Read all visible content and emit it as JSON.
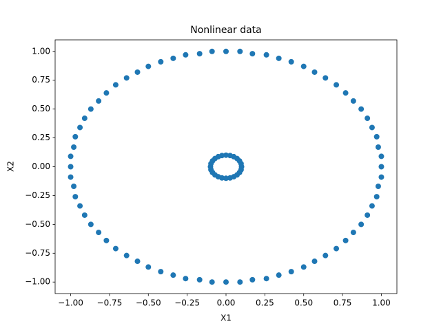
{
  "chart_data": {
    "type": "scatter",
    "title": "Nonlinear data",
    "x_label": "X1",
    "y_label": "X2",
    "color": "#1f77b4",
    "grid": false,
    "xlim": [
      -1.1,
      1.1
    ],
    "ylim": [
      -1.1,
      1.1
    ],
    "xticks": [
      {
        "value": -1,
        "label": "−1.00"
      },
      {
        "value": -0.75,
        "label": "−0.75"
      },
      {
        "value": -0.5,
        "label": "−0.50"
      },
      {
        "value": -0.25,
        "label": "−0.25"
      },
      {
        "value": 0,
        "label": "0.00"
      },
      {
        "value": 0.25,
        "label": "0.25"
      },
      {
        "value": 0.5,
        "label": "0.50"
      },
      {
        "value": 0.75,
        "label": "0.75"
      },
      {
        "value": 1,
        "label": "1.00"
      }
    ],
    "yticks": [
      {
        "value": -1,
        "label": "−1.00"
      },
      {
        "value": -0.75,
        "label": "−0.75"
      },
      {
        "value": -0.5,
        "label": "−0.50"
      },
      {
        "value": -0.25,
        "label": "−0.25"
      },
      {
        "value": 0,
        "label": "0.00"
      },
      {
        "value": 0.25,
        "label": "0.25"
      },
      {
        "value": 0.5,
        "label": "0.50"
      },
      {
        "value": 0.75,
        "label": "0.75"
      },
      {
        "value": 1,
        "label": "1.00"
      }
    ],
    "x": [
      1,
      1,
      0.98,
      0.97,
      0.94,
      0.91,
      0.87,
      0.82,
      0.77,
      0.71,
      0.64,
      0.57,
      0.5,
      0.42,
      0.34,
      0.26,
      0.17,
      0.09,
      0,
      -0.09,
      -0.17,
      -0.26,
      -0.34,
      -0.42,
      -0.5,
      -0.57,
      -0.64,
      -0.71,
      -0.77,
      -0.82,
      -0.87,
      -0.91,
      -0.94,
      -0.97,
      -0.98,
      -1,
      -1,
      -1,
      -0.98,
      -0.97,
      -0.94,
      -0.91,
      -0.87,
      -0.82,
      -0.77,
      -0.71,
      -0.64,
      -0.57,
      -0.5,
      -0.42,
      -0.34,
      -0.26,
      -0.17,
      -0.09,
      0,
      0.09,
      0.17,
      0.26,
      0.34,
      0.42,
      0.5,
      0.57,
      0.64,
      0.71,
      0.77,
      0.82,
      0.87,
      0.91,
      0.94,
      0.97,
      0.98,
      1,
      0.1,
      0.097,
      0.087,
      0.071,
      0.05,
      0.026,
      0,
      -0.026,
      -0.05,
      -0.071,
      -0.087,
      -0.097,
      -0.1,
      -0.097,
      -0.087,
      -0.071,
      -0.05,
      -0.026,
      0,
      0.026,
      0.05,
      0.071,
      0.087,
      0.097
    ],
    "y": [
      0,
      0.09,
      0.17,
      0.26,
      0.34,
      0.42,
      0.5,
      0.57,
      0.64,
      0.71,
      0.77,
      0.82,
      0.87,
      0.91,
      0.94,
      0.97,
      0.98,
      1,
      1,
      1,
      0.98,
      0.97,
      0.94,
      0.91,
      0.87,
      0.82,
      0.77,
      0.71,
      0.64,
      0.57,
      0.5,
      0.42,
      0.34,
      0.26,
      0.17,
      0.09,
      0,
      -0.09,
      -0.17,
      -0.26,
      -0.34,
      -0.42,
      -0.5,
      -0.57,
      -0.64,
      -0.71,
      -0.77,
      -0.82,
      -0.87,
      -0.91,
      -0.94,
      -0.97,
      -0.98,
      -1,
      -1,
      -1,
      -0.98,
      -0.97,
      -0.94,
      -0.91,
      -0.87,
      -0.82,
      -0.77,
      -0.71,
      -0.64,
      -0.57,
      -0.5,
      -0.42,
      -0.34,
      -0.26,
      -0.17,
      -0.09,
      0,
      0.026,
      0.05,
      0.071,
      0.087,
      0.097,
      0.1,
      0.097,
      0.087,
      0.071,
      0.05,
      0.026,
      0,
      -0.026,
      -0.05,
      -0.071,
      -0.087,
      -0.097,
      -0.1,
      -0.097,
      -0.087,
      -0.071,
      -0.05,
      -0.026
    ]
  }
}
